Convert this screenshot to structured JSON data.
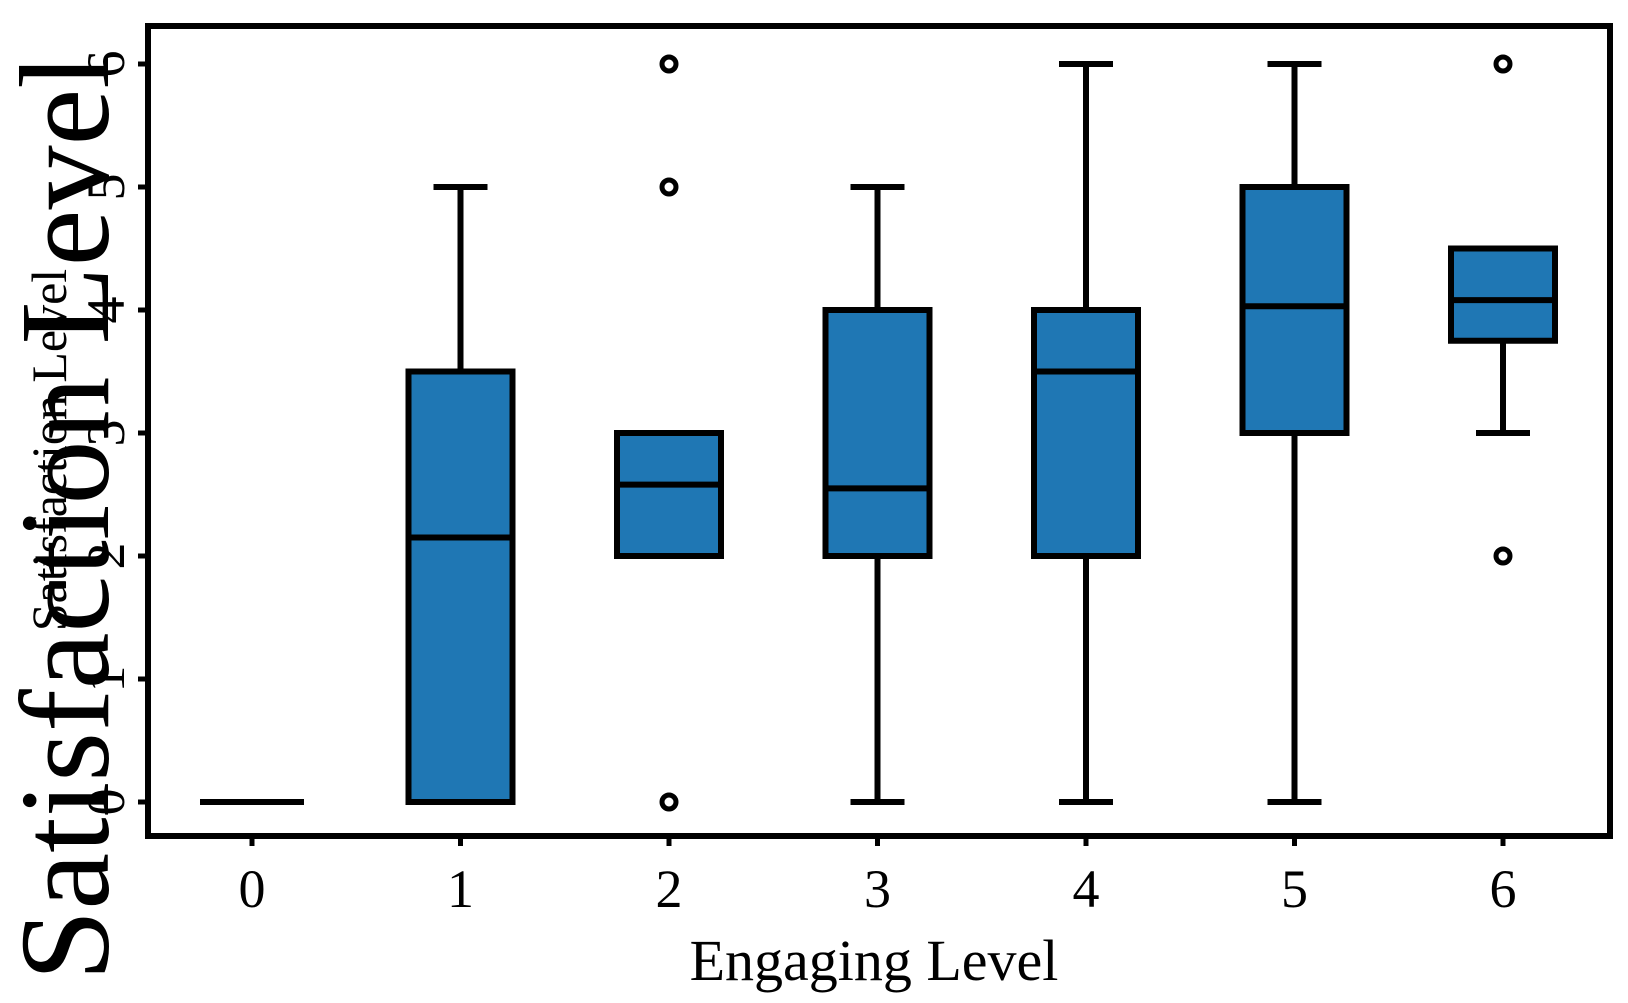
{
  "chart_data": {
    "type": "box",
    "title": "",
    "xlabel": "Engaging Level",
    "ylabel": "Satisfaction Level",
    "ylabel_repeat": "Satisfaction Level",
    "categories": [
      "0",
      "1",
      "2",
      "3",
      "4",
      "5",
      "6"
    ],
    "yticks": [
      "0",
      "1",
      "2",
      "3",
      "4",
      "5",
      "6"
    ],
    "ylim": [
      -0.3,
      6.3
    ],
    "box_color": "#1f77b4",
    "edge_color": "#000000",
    "boxes": [
      {
        "category": "0",
        "whisker_low": 0,
        "q1": 0,
        "median": 0,
        "q3": 0,
        "whisker_high": 0,
        "outliers": []
      },
      {
        "category": "1",
        "whisker_low": 0,
        "q1": 0,
        "median": 2.15,
        "q3": 3.5,
        "whisker_high": 5,
        "outliers": []
      },
      {
        "category": "2",
        "whisker_low": 2,
        "q1": 2,
        "median": 2.58,
        "q3": 3,
        "whisker_high": 3,
        "outliers": [
          6,
          5,
          0
        ]
      },
      {
        "category": "3",
        "whisker_low": 0,
        "q1": 2,
        "median": 2.55,
        "q3": 4,
        "whisker_high": 5,
        "outliers": []
      },
      {
        "category": "4",
        "whisker_low": 0,
        "q1": 2,
        "median": 3.5,
        "q3": 4,
        "whisker_high": 6,
        "outliers": []
      },
      {
        "category": "5",
        "whisker_low": 0,
        "q1": 3,
        "median": 4.03,
        "q3": 5,
        "whisker_high": 6,
        "outliers": []
      },
      {
        "category": "6",
        "whisker_low": 3,
        "q1": 3.75,
        "median": 4.08,
        "q3": 4.5,
        "whisker_high": 4.5,
        "outliers": [
          6,
          2
        ]
      }
    ]
  }
}
